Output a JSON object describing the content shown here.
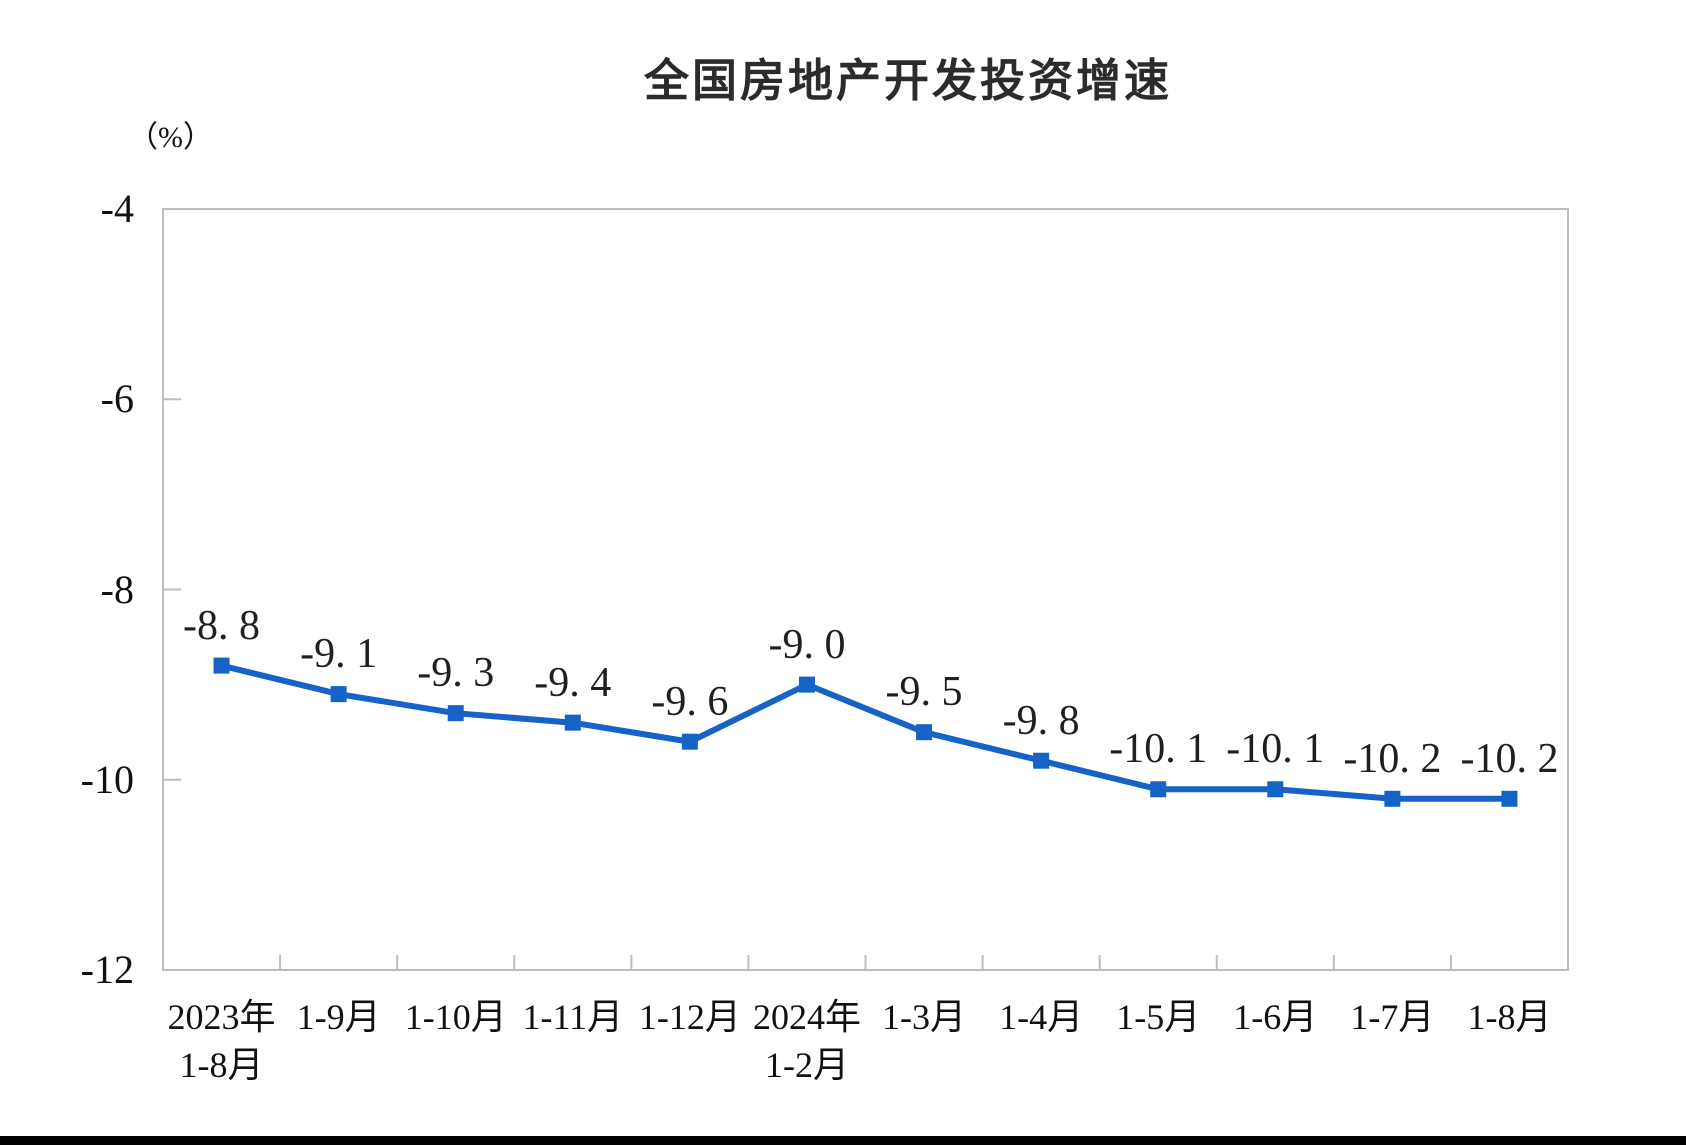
{
  "page": {
    "background": "#ffffff"
  },
  "chart_data": {
    "type": "line",
    "title": "全国房地产开发投资增速",
    "unit_label": "（%）",
    "categories": [
      {
        "line1": "2023年",
        "line2": "1-8月"
      },
      {
        "line1": "1-9月",
        "line2": ""
      },
      {
        "line1": "1-10月",
        "line2": ""
      },
      {
        "line1": "1-11月",
        "line2": ""
      },
      {
        "line1": "1-12月",
        "line2": ""
      },
      {
        "line1": "2024年",
        "line2": "1-2月"
      },
      {
        "line1": "1-3月",
        "line2": ""
      },
      {
        "line1": "1-4月",
        "line2": ""
      },
      {
        "line1": "1-5月",
        "line2": ""
      },
      {
        "line1": "1-6月",
        "line2": ""
      },
      {
        "line1": "1-7月",
        "line2": ""
      },
      {
        "line1": "1-8月",
        "line2": ""
      }
    ],
    "values": [
      -8.8,
      -9.1,
      -9.3,
      -9.4,
      -9.6,
      -9.0,
      -9.5,
      -9.8,
      -10.1,
      -10.1,
      -10.2,
      -10.2
    ],
    "point_labels": [
      "-8. 8",
      "-9. 1",
      "-9. 3",
      "-9. 4",
      "-9. 6",
      "-9. 0",
      "-9. 5",
      "-9. 8",
      "-10. 1",
      "-10. 1",
      "-10. 2",
      "-10. 2"
    ],
    "y_axis": {
      "min": -12,
      "max": -4,
      "ticks": [
        -4,
        -6,
        -8,
        -10,
        -12
      ],
      "tick_labels": [
        "-4",
        "-6",
        "-8",
        "-10",
        "-12"
      ]
    },
    "legend": "none",
    "grid": false,
    "colors": {
      "line": "#1663c7",
      "marker": "#1663c7",
      "axis": "#bdbdbd",
      "text": "#111111",
      "title": "#2b2b2b"
    }
  }
}
